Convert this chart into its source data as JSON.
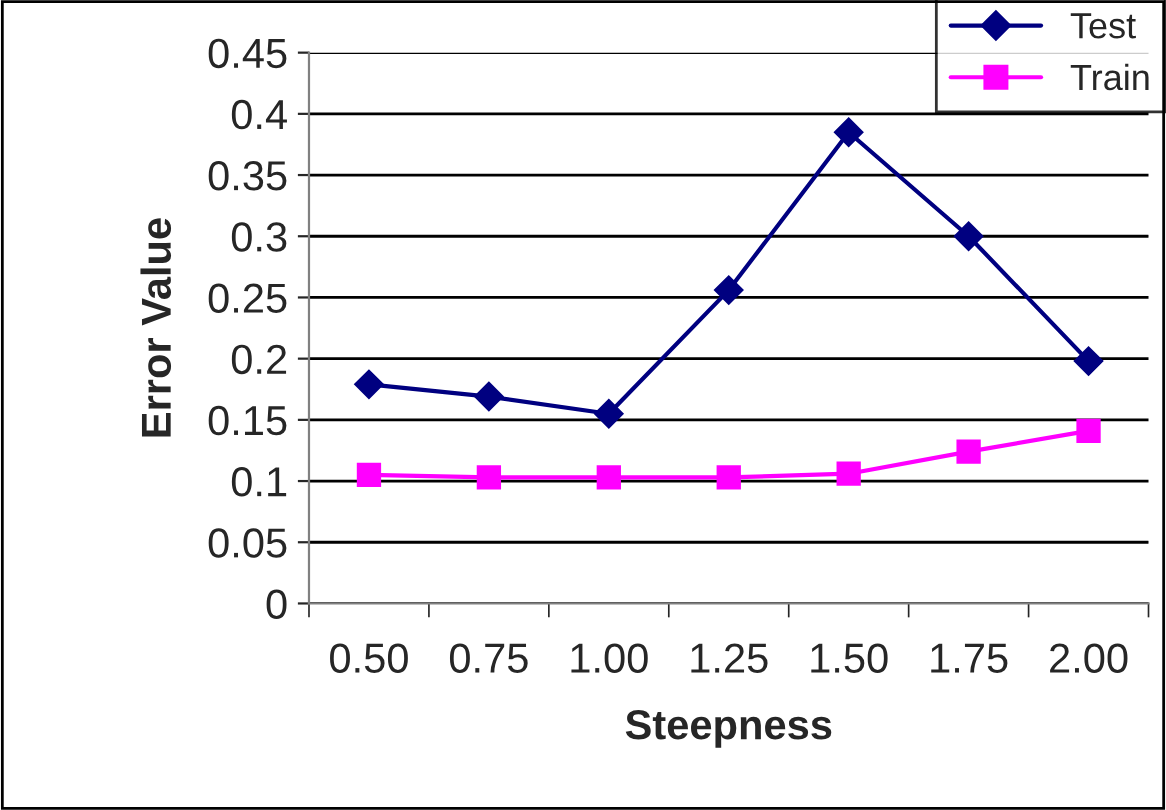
{
  "chart_data": {
    "type": "line",
    "xlabel": "Steepness",
    "ylabel": "Error Value",
    "categories": [
      "0.50",
      "0.75",
      "1.00",
      "1.25",
      "1.50",
      "1.75",
      "2.00"
    ],
    "series": [
      {
        "name": "Test",
        "color": "#000080",
        "marker": "diamond",
        "values": [
          0.179,
          0.169,
          0.155,
          0.256,
          0.385,
          0.3,
          0.198
        ]
      },
      {
        "name": "Train",
        "color": "#ff00ff",
        "marker": "square",
        "values": [
          0.105,
          0.103,
          0.103,
          0.103,
          0.106,
          0.124,
          0.141
        ]
      }
    ],
    "ylim": [
      0,
      0.45
    ],
    "yticks": [
      0,
      0.05,
      0.1,
      0.15,
      0.2,
      0.25,
      0.3,
      0.35,
      0.4,
      0.45
    ],
    "grid": "y",
    "legend": "top right",
    "line_style": "solid"
  }
}
